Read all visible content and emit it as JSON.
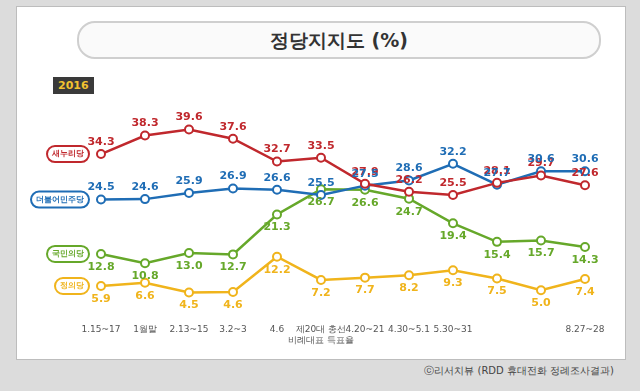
{
  "chart_data": {
    "type": "line",
    "title": "정당지지도 (%)",
    "annotations": [
      "2016",
      "ⓒ리서치뷰 (RDD 휴대전화 정례조사결과)"
    ],
    "categories": [
      "1.15~17",
      "1월말",
      "2.13~15",
      "3.2~3",
      "4.6",
      "제20대 총선\n비례대표 득표율",
      "4.20~21",
      "4.30~5.1",
      "5.30~31",
      null,
      null,
      "8.27~28"
    ],
    "series": [
      {
        "name": "새누리당",
        "color": "#c0282d",
        "values": [
          34.3,
          38.3,
          39.6,
          37.6,
          32.7,
          33.5,
          27.9,
          26.2,
          25.5,
          28.1,
          29.7,
          27.6
        ],
        "value_labels": [
          "34.3",
          "38.3",
          "39.6",
          "37.6",
          "32.7",
          "33.5",
          "27.9",
          "26.2",
          "25.5",
          "28.1",
          "29.7",
          "27.6"
        ]
      },
      {
        "name": "더불어민주당",
        "color": "#1f6db5",
        "values": [
          24.5,
          24.6,
          25.9,
          26.9,
          26.6,
          25.5,
          27.5,
          28.6,
          32.2,
          27.7,
          30.6,
          30.6
        ],
        "value_labels": [
          "24.5",
          "24.6",
          "25.9",
          "26.9",
          "26.6",
          "25.5",
          "27.5",
          "28.6",
          "32.2",
          "27.7",
          "30.6",
          "30.6"
        ]
      },
      {
        "name": "국민의당",
        "color": "#66a82a",
        "values": [
          12.8,
          10.8,
          13.0,
          12.7,
          21.3,
          26.7,
          26.6,
          24.7,
          19.4,
          15.4,
          15.7,
          14.3
        ],
        "value_labels": [
          "12.8",
          "10.8",
          "13.0",
          "12.7",
          "21.3",
          "26.7",
          "26.6",
          "24.7",
          "19.4",
          "15.4",
          "15.7",
          "14.3"
        ]
      },
      {
        "name": "정의당",
        "color": "#f0b41c",
        "values": [
          5.9,
          6.6,
          4.5,
          4.6,
          12.2,
          7.2,
          7.7,
          8.2,
          9.3,
          7.5,
          5.0,
          7.4
        ],
        "value_labels": [
          "5.9",
          "6.6",
          "4.5",
          "4.6",
          "12.2",
          "7.2",
          "7.7",
          "8.2",
          "9.3",
          "7.5",
          "5.0",
          "7.4"
        ]
      }
    ],
    "ylim": [
      0,
      44
    ],
    "grid": false,
    "tick_labels": "x",
    "data_labels": true,
    "marker": "circle",
    "line_style": "solid"
  }
}
